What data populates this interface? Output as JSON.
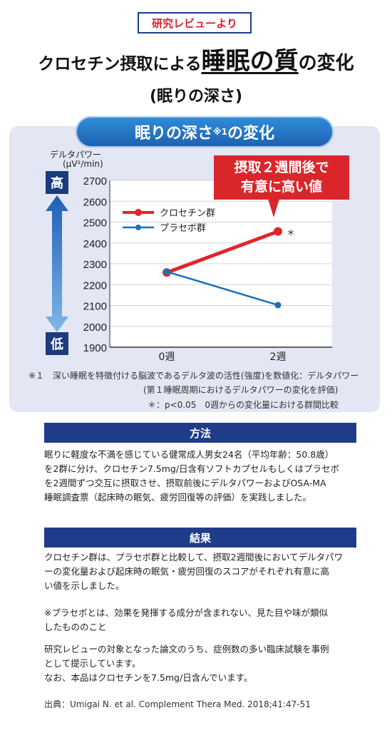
{
  "badge": "研究レビューより",
  "headline": {
    "part1": "クロセチン摂取による",
    "part2": "睡眠の質",
    "part3": "の変化",
    "sub": "(眠りの深さ)"
  },
  "chart_title": "眠りの深さ",
  "chart_title_sup": "※1",
  "chart_title_suffix": "の変化",
  "high_label": "高",
  "low_label": "低",
  "callout": {
    "line1": "摂取２週間後で",
    "line2": "有意に高い値"
  },
  "notes": {
    "note1_a": "※１　深い睡眠を特徴付ける脳波であるデルタ波の活性(強度)を数値化：デルタパワー",
    "note1_b": "(第１睡眠周期におけるデルタパワーの変化を評価)",
    "note2": "＊：p<0.05　0週からの変化量における群間比較"
  },
  "colors": {
    "crocetin": "#e0262c",
    "placebo": "#1f6fb3",
    "section_bar": "#1e3c89",
    "badge_text": "#d8202a"
  },
  "chart_data": {
    "type": "line",
    "ylabel": "デルタパワー",
    "yunit": "(μV²/min)",
    "x": [
      "0週",
      "2週"
    ],
    "ylim": [
      1900,
      2700
    ],
    "yticks": [
      1900,
      2000,
      2100,
      2200,
      2300,
      2400,
      2500,
      2600,
      2700
    ],
    "grid": true,
    "legend_position": "upper-left",
    "series": [
      {
        "name": "クロセチン群",
        "values": [
          2258,
          2455
        ],
        "color": "#e0262c",
        "significance": [
          "",
          "＊"
        ]
      },
      {
        "name": "プラセボ群",
        "values": [
          2262,
          2102
        ],
        "color": "#1f6fb3",
        "significance": [
          "",
          ""
        ]
      }
    ]
  },
  "method": {
    "title": "方法",
    "text": "眠りに軽度な不満を感じている健常成人男女24名（平均年齢：50.8歳）\nを2群に分け、クロセチン7.5mg/日含有ソフトカプセルもしくはプラセボ\nを2週間ずつ交互に摂取させ、摂取前後にデルタパワーおよびOSA-MA\n睡眠調査票（起床時の眠気、疲労回復等の評価）を実践しました。"
  },
  "result": {
    "title": "結果",
    "text": "クロセチン群は、プラセボ群と比較して、摂取2週間後においてデルタパワ\nーの変化量および起床時の眠気・疲労回復のスコアがそれぞれ有意に高\nい値を示しました。",
    "placebo_note": "※プラセボとは、効果を発揮する成分が含まれない、見た目や味が類似\nしたもののこと",
    "review_note": "研究レビューの対象となった論文のうち、症例数の多い臨床試験を事例\nとして提示しています。\nなお、本品はクロセチンを7.5mg/日含んでいます。"
  },
  "citation": "出典：Umigai N. et al. Complement Thera Med. 2018;41:47-51"
}
